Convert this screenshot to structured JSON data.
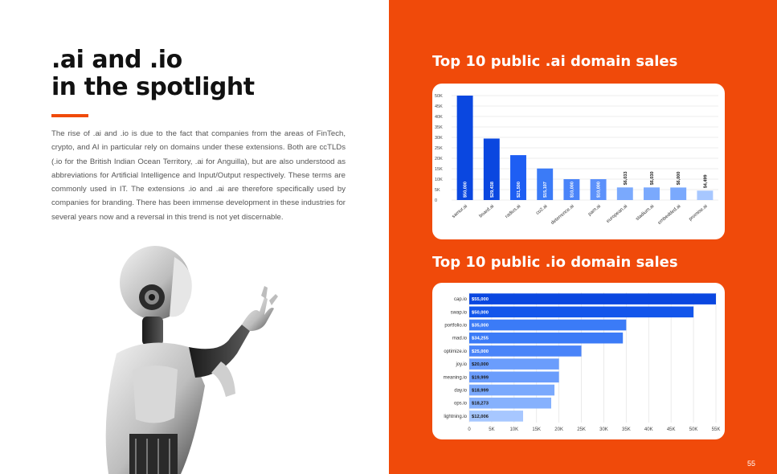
{
  "page": {
    "headline_line1": ".ai and .io",
    "headline_line2": "in the spotlight",
    "body": "The rise of .ai and .io is due to the fact that companies from the areas of FinTech, crypto, and AI in particular rely on domains under these extensions. Both are ccTLDs (.io for the British Indian Ocean Territory, .ai for Anguilla), but are also understood as abbreviations for Artificial Intelligence and Input/Output respectively. These terms are commonly used in IT. The extensions .io and .ai are therefore specifically used by companies for branding. There has been immense development in these industries for several years now and a reversal in this trend is not yet discernable.",
    "page_number": "55",
    "accent_color": "#f04a0a"
  },
  "chart_data": [
    {
      "type": "bar",
      "orientation": "vertical",
      "title": "Top 10 public .ai domain sales",
      "categories": [
        "samur.ai",
        "board.ai",
        "radius.ai",
        "co2.ai",
        "deterrence.ai",
        "pam.ai",
        "european.ai",
        "stadium.ai",
        "embedded.ai",
        "promise.ai"
      ],
      "values": [
        50000,
        29438,
        21500,
        15107,
        10000,
        10000,
        6033,
        6030,
        6000,
        4499
      ],
      "value_labels": [
        "$50,000",
        "$29,438",
        "$21,500",
        "$15,107",
        "$10,000",
        "$10,000",
        "$6,033",
        "$6,030",
        "$6,000",
        "$4,499"
      ],
      "colors": [
        "#0a47e0",
        "#0a47e0",
        "#1e5ef3",
        "#3b7bf7",
        "#4a84f9",
        "#5c91fb",
        "#7aa9fd",
        "#7aa9fd",
        "#7aa9fd",
        "#a7c7ff"
      ],
      "ylim": [
        0,
        50000
      ],
      "y_ticks": [
        0,
        5000,
        10000,
        15000,
        20000,
        25000,
        30000,
        35000,
        40000,
        45000,
        50000
      ],
      "y_tick_labels": [
        "0",
        "5K",
        "10K",
        "15K",
        "20K",
        "25K",
        "30K",
        "35K",
        "40K",
        "45K",
        "50K"
      ],
      "grid": true,
      "legend": "none"
    },
    {
      "type": "bar",
      "orientation": "horizontal",
      "title": "Top 10 public .io domain sales",
      "categories": [
        "cap.io",
        "swap.io",
        "portfolio.io",
        "mad.io",
        "optimize.io",
        "joy.io",
        "meaning.io",
        "day.io",
        "ops.io",
        "lightning.io"
      ],
      "values": [
        55000,
        50000,
        35000,
        34255,
        25000,
        20000,
        19999,
        18999,
        18273,
        12006
      ],
      "value_labels": [
        "$55,000",
        "$50,000",
        "$35,000",
        "$34,255",
        "$25,000",
        "$20,000",
        "$19,999",
        "$18,999",
        "$18,273",
        "$12,006"
      ],
      "colors": [
        "#0a47e0",
        "#1356eb",
        "#3b7bf7",
        "#3b7bf7",
        "#4a84f9",
        "#6b9dfc",
        "#6b9dfc",
        "#7aa9fd",
        "#86b1fd",
        "#a7c7ff"
      ],
      "xlim": [
        0,
        55000
      ],
      "x_ticks": [
        0,
        5000,
        10000,
        15000,
        20000,
        25000,
        30000,
        35000,
        40000,
        45000,
        50000,
        55000
      ],
      "x_tick_labels": [
        "0",
        "5K",
        "10K",
        "15K",
        "20K",
        "25K",
        "30K",
        "35K",
        "40K",
        "45K",
        "50K",
        "55K"
      ],
      "grid": true,
      "legend": "none"
    }
  ]
}
